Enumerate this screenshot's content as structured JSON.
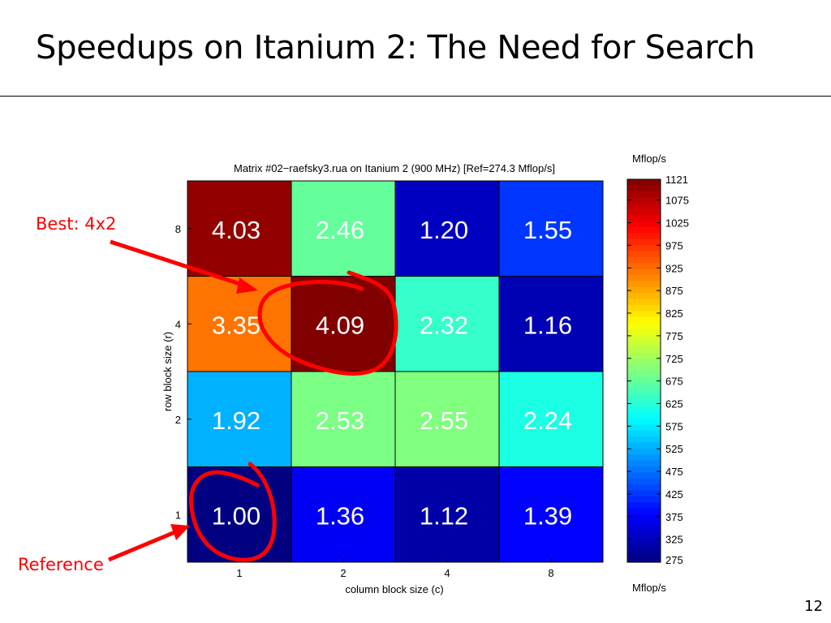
{
  "slide": {
    "title": "Speedups on Itanium 2: The Need for Search",
    "page_number": "12",
    "annotations": {
      "best": "Best: 4x2",
      "reference": "Reference"
    },
    "annotation_color": "#ff0000"
  },
  "chart_data": {
    "type": "heatmap",
    "title": "Matrix #02−raefsky3.rua on Itanium 2 (900 MHz) [Ref=274.3 Mflop/s]",
    "xlabel": "column block size (c)",
    "ylabel": "row block size (r)",
    "x_categories": [
      "1",
      "2",
      "4",
      "8"
    ],
    "y_categories": [
      "1",
      "2",
      "4",
      "8"
    ],
    "cells": [
      {
        "r": "8",
        "c": "1",
        "speedup": "4.03",
        "mflops": 1105
      },
      {
        "r": "8",
        "c": "2",
        "speedup": "2.46",
        "mflops": 675
      },
      {
        "r": "8",
        "c": "4",
        "speedup": "1.20",
        "mflops": 329
      },
      {
        "r": "8",
        "c": "8",
        "speedup": "1.55",
        "mflops": 425
      },
      {
        "r": "4",
        "c": "1",
        "speedup": "3.35",
        "mflops": 919
      },
      {
        "r": "4",
        "c": "2",
        "speedup": "4.09",
        "mflops": 1121
      },
      {
        "r": "4",
        "c": "4",
        "speedup": "2.32",
        "mflops": 636
      },
      {
        "r": "4",
        "c": "8",
        "speedup": "1.16",
        "mflops": 318
      },
      {
        "r": "2",
        "c": "1",
        "speedup": "1.92",
        "mflops": 527
      },
      {
        "r": "2",
        "c": "2",
        "speedup": "2.53",
        "mflops": 694
      },
      {
        "r": "2",
        "c": "4",
        "speedup": "2.55",
        "mflops": 699
      },
      {
        "r": "2",
        "c": "8",
        "speedup": "2.24",
        "mflops": 614
      },
      {
        "r": "1",
        "c": "1",
        "speedup": "1.00",
        "mflops": 275
      },
      {
        "r": "1",
        "c": "2",
        "speedup": "1.36",
        "mflops": 373
      },
      {
        "r": "1",
        "c": "4",
        "speedup": "1.12",
        "mflops": 307
      },
      {
        "r": "1",
        "c": "8",
        "speedup": "1.39",
        "mflops": 381
      }
    ],
    "colorbar": {
      "label_top": "Mflop/s",
      "label_bottom": "Mflop/s",
      "min": 274.3,
      "max": 1121,
      "ticks": [
        "1121",
        "1075",
        "1025",
        "975",
        "925",
        "875",
        "825",
        "775",
        "725",
        "675",
        "625",
        "575",
        "525",
        "475",
        "425",
        "375",
        "325",
        "275"
      ],
      "colormap": "jet"
    },
    "cell_text_color": "#ffffff",
    "grid": true
  }
}
